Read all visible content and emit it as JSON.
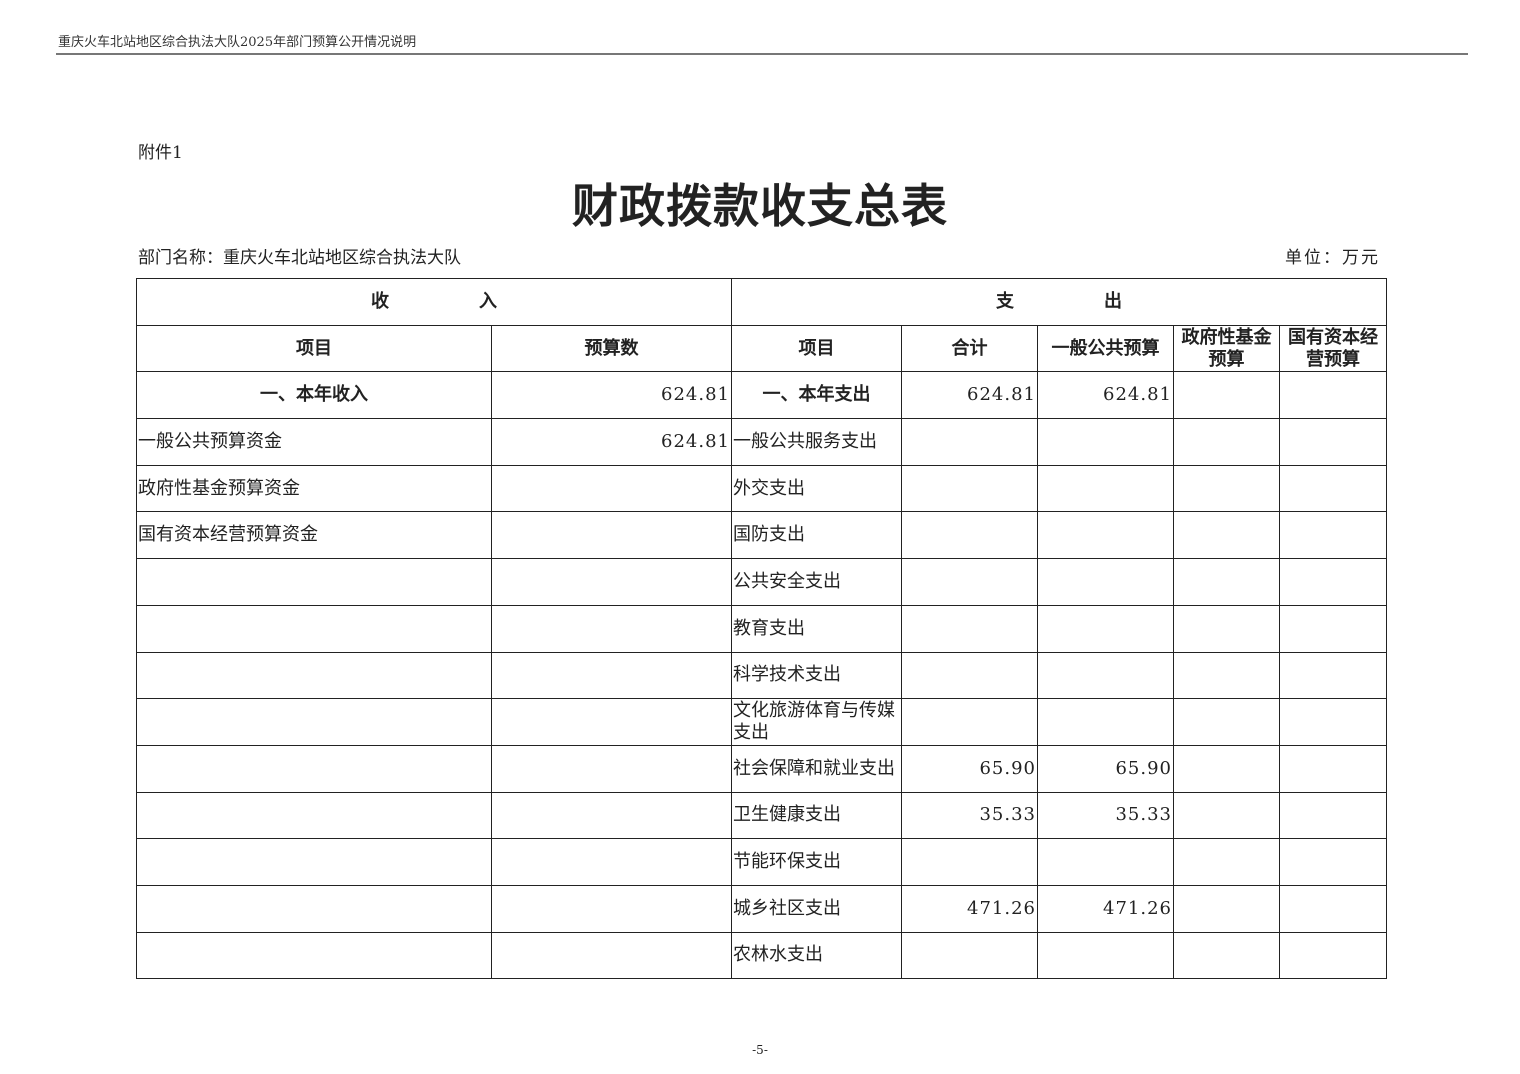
{
  "running_header": "重庆火车北站地区综合执法大队2025年部门预算公开情况说明",
  "attachment": "附件1",
  "title": "财政拨款收支总表",
  "department": "部门名称：重庆火车北站地区综合执法大队",
  "unit": "单位：万元",
  "table": {
    "group_income": "收　　　　　入",
    "group_expense": "支　　　　　出",
    "headers": [
      "项目",
      "预算数",
      "项目",
      "合计",
      "一般公共预算",
      "政府性基金预算",
      "国有资本经营预算"
    ],
    "rows": [
      [
        "一、本年收入",
        "624.81",
        "一、本年支出",
        "624.81",
        "624.81",
        "",
        ""
      ],
      [
        "一般公共预算资金",
        "624.81",
        "一般公共服务支出",
        "",
        "",
        "",
        ""
      ],
      [
        "政府性基金预算资金",
        "",
        "外交支出",
        "",
        "",
        "",
        ""
      ],
      [
        "国有资本经营预算资金",
        "",
        "国防支出",
        "",
        "",
        "",
        ""
      ],
      [
        "",
        "",
        "公共安全支出",
        "",
        "",
        "",
        ""
      ],
      [
        "",
        "",
        "教育支出",
        "",
        "",
        "",
        ""
      ],
      [
        "",
        "",
        "科学技术支出",
        "",
        "",
        "",
        ""
      ],
      [
        "",
        "",
        "文化旅游体育与传媒支出",
        "",
        "",
        "",
        ""
      ],
      [
        "",
        "",
        "社会保障和就业支出",
        "65.90",
        "65.90",
        "",
        ""
      ],
      [
        "",
        "",
        "卫生健康支出",
        "35.33",
        "35.33",
        "",
        ""
      ],
      [
        "",
        "",
        "节能环保支出",
        "",
        "",
        "",
        ""
      ],
      [
        "",
        "",
        "城乡社区支出",
        "471.26",
        "471.26",
        "",
        ""
      ],
      [
        "",
        "",
        "农林水支出",
        "",
        "",
        "",
        ""
      ]
    ]
  },
  "page_number": "-5-"
}
